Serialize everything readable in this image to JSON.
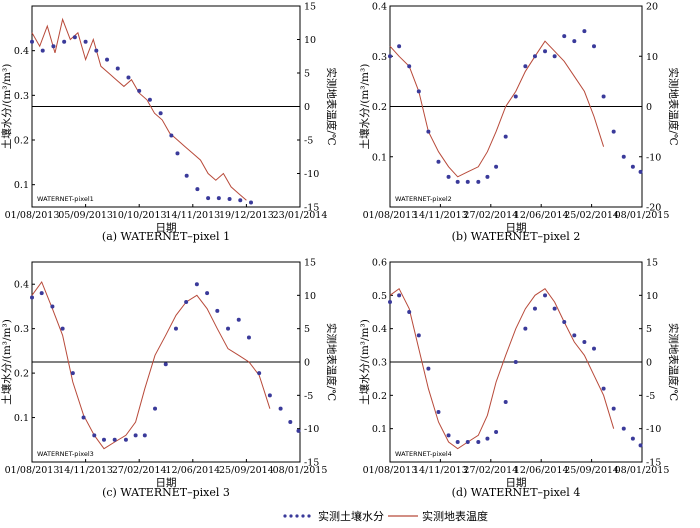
{
  "figure": {
    "legend": {
      "soil_moisture": "实测土壤水分",
      "surface_temperature": "实测地表温度"
    },
    "colors": {
      "moisture": "#3a3a9a",
      "temperature": "#b84a3a",
      "axis": "#000000",
      "zero_line": "#000000"
    }
  },
  "chart_data": [
    {
      "type": "scatter+line",
      "caption": "(a) WATERNET–pixel 1",
      "panel_label": "WATERNET-pixel1",
      "xlabel": "日期",
      "ylabel_left": "土壤水分/(m³/m³)",
      "ylabel_right": "实测地表温度/℃",
      "x_ticks": [
        "01/08/2013",
        "05/09/2013",
        "10/10/2013",
        "14/11/2013",
        "19/12/2013",
        "23/01/2014"
      ],
      "x_range": [
        "2013-08-01",
        "2014-01-23"
      ],
      "y_left_ticks": [
        "0.1",
        "0.2",
        "0.3",
        "0.4"
      ],
      "y_left_range": [
        0.05,
        0.5
      ],
      "y_right_ticks": [
        "-15",
        "-10",
        "-5",
        "0",
        "5",
        "10",
        "15"
      ],
      "y_right_range": [
        -15,
        15
      ],
      "soil_moisture": {
        "x": [
          "2013-08-01",
          "2013-08-08",
          "2013-08-15",
          "2013-08-22",
          "2013-08-29",
          "2013-09-05",
          "2013-09-12",
          "2013-09-19",
          "2013-09-26",
          "2013-10-03",
          "2013-10-10",
          "2013-10-17",
          "2013-10-24",
          "2013-10-31",
          "2013-11-04",
          "2013-11-10",
          "2013-11-17",
          "2013-11-24",
          "2013-12-01",
          "2013-12-08",
          "2013-12-15",
          "2013-12-22"
        ],
        "y": [
          0.42,
          0.4,
          0.41,
          0.42,
          0.43,
          0.42,
          0.4,
          0.38,
          0.36,
          0.34,
          0.31,
          0.29,
          0.26,
          0.21,
          0.17,
          0.12,
          0.09,
          0.07,
          0.07,
          0.068,
          0.065,
          0.06
        ]
      },
      "temperature": {
        "x": [
          "2013-08-01",
          "2013-08-06",
          "2013-08-11",
          "2013-08-16",
          "2013-08-21",
          "2013-08-26",
          "2013-08-31",
          "2013-09-05",
          "2013-09-10",
          "2013-09-15",
          "2013-09-20",
          "2013-09-25",
          "2013-09-30",
          "2013-10-05",
          "2013-10-10",
          "2013-10-15",
          "2013-10-20",
          "2013-10-25",
          "2013-10-30",
          "2013-11-04",
          "2013-11-09",
          "2013-11-14",
          "2013-11-19",
          "2013-11-24",
          "2013-11-29",
          "2013-12-04",
          "2013-12-09",
          "2013-12-14",
          "2013-12-19"
        ],
        "y": [
          11,
          9,
          12,
          8,
          13,
          10,
          11,
          7,
          10,
          6,
          5,
          4,
          3,
          4,
          2,
          1,
          -1,
          -2,
          -4,
          -5,
          -6,
          -7,
          -8,
          -10,
          -11,
          -10,
          -12,
          -13,
          -14
        ]
      }
    },
    {
      "type": "scatter+line",
      "caption": "(b) WATERNET–pixel 2",
      "panel_label": "WATERNET-pixel2",
      "xlabel": "日期",
      "ylabel_left": "土壤水分/(m³/m³)",
      "ylabel_right": "实测地表温度/℃",
      "x_ticks": [
        "01/08/2013",
        "14/11/2013",
        "27/02/2014",
        "12/06/2014",
        "25/02/2014",
        "08/01/2015"
      ],
      "x_range": [
        "2013-08-01",
        "2015-01-08"
      ],
      "y_left_ticks": [
        "0.1",
        "0.2",
        "0.3",
        "0.4"
      ],
      "y_left_range": [
        0.0,
        0.4
      ],
      "y_right_ticks": [
        "-20",
        "-10",
        "0",
        "10",
        "20"
      ],
      "y_right_range": [
        -20,
        20
      ],
      "soil_moisture": {
        "x": [
          "2013-08-01",
          "2013-08-20",
          "2013-09-10",
          "2013-09-30",
          "2013-10-20",
          "2013-11-10",
          "2013-12-01",
          "2013-12-20",
          "2014-01-10",
          "2014-02-01",
          "2014-02-20",
          "2014-03-10",
          "2014-03-30",
          "2014-04-20",
          "2014-05-10",
          "2014-05-30",
          "2014-06-20",
          "2014-07-10",
          "2014-07-30",
          "2014-08-20",
          "2014-09-10",
          "2014-09-30",
          "2014-10-20",
          "2014-11-10",
          "2014-12-01",
          "2014-12-20",
          "2015-01-05"
        ],
        "y": [
          0.3,
          0.32,
          0.28,
          0.23,
          0.15,
          0.09,
          0.06,
          0.05,
          0.05,
          0.05,
          0.06,
          0.08,
          0.14,
          0.22,
          0.28,
          0.3,
          0.31,
          0.3,
          0.34,
          0.33,
          0.35,
          0.32,
          0.22,
          0.15,
          0.1,
          0.08,
          0.07
        ]
      },
      "temperature": {
        "x": [
          "2013-08-01",
          "2013-08-20",
          "2013-09-10",
          "2013-09-30",
          "2013-10-20",
          "2013-11-10",
          "2013-12-01",
          "2013-12-20",
          "2014-01-10",
          "2014-02-01",
          "2014-02-20",
          "2014-03-10",
          "2014-03-30",
          "2014-04-20",
          "2014-05-10",
          "2014-05-30",
          "2014-06-20",
          "2014-07-10",
          "2014-07-30",
          "2014-08-20",
          "2014-09-10",
          "2014-09-30",
          "2014-10-20"
        ],
        "y": [
          12,
          10,
          8,
          3,
          -5,
          -9,
          -12,
          -14,
          -13,
          -12,
          -9,
          -5,
          0,
          3,
          7,
          10,
          13,
          11,
          9,
          6,
          3,
          -2,
          -8
        ]
      }
    },
    {
      "type": "scatter+line",
      "caption": "(c) WATERNET–pixel 3",
      "panel_label": "WATERNET-pixel3",
      "xlabel": "日期",
      "ylabel_left": "土壤水分/(m³/m³)",
      "ylabel_right": "实测地表温度/℃",
      "x_ticks": [
        "01/08/2013",
        "14/11/2013",
        "27/02/2014",
        "12/06/2014",
        "25/09/2014",
        "08/01/2015"
      ],
      "x_range": [
        "2013-08-01",
        "2015-01-08"
      ],
      "y_left_ticks": [
        "0.1",
        "0.2",
        "0.3",
        "0.4"
      ],
      "y_left_range": [
        0.0,
        0.45
      ],
      "y_right_ticks": [
        "-15",
        "-10",
        "-5",
        "0",
        "5",
        "10",
        "15"
      ],
      "y_right_range": [
        -15,
        15
      ],
      "soil_moisture": {
        "x": [
          "2013-08-01",
          "2013-08-20",
          "2013-09-10",
          "2013-09-30",
          "2013-10-20",
          "2013-11-10",
          "2013-12-01",
          "2013-12-20",
          "2014-01-10",
          "2014-02-01",
          "2014-02-20",
          "2014-03-10",
          "2014-03-30",
          "2014-04-20",
          "2014-05-10",
          "2014-05-30",
          "2014-06-20",
          "2014-07-10",
          "2014-07-30",
          "2014-08-20",
          "2014-09-10",
          "2014-09-30",
          "2014-10-20",
          "2014-11-10",
          "2014-12-01",
          "2014-12-20",
          "2015-01-05"
        ],
        "y": [
          0.37,
          0.38,
          0.35,
          0.3,
          0.2,
          0.1,
          0.06,
          0.05,
          0.05,
          0.05,
          0.06,
          0.06,
          0.12,
          0.22,
          0.3,
          0.36,
          0.4,
          0.38,
          0.34,
          0.3,
          0.32,
          0.28,
          0.2,
          0.15,
          0.12,
          0.09,
          0.07
        ]
      },
      "temperature": {
        "x": [
          "2013-08-01",
          "2013-08-20",
          "2013-09-10",
          "2013-09-30",
          "2013-10-20",
          "2013-11-10",
          "2013-12-01",
          "2013-12-20",
          "2014-01-10",
          "2014-02-01",
          "2014-02-20",
          "2014-03-10",
          "2014-03-30",
          "2014-04-20",
          "2014-05-10",
          "2014-05-30",
          "2014-06-20",
          "2014-07-10",
          "2014-07-30",
          "2014-08-20",
          "2014-09-10",
          "2014-09-30",
          "2014-10-20",
          "2014-11-10"
        ],
        "y": [
          10,
          12,
          8,
          4,
          -3,
          -8,
          -11,
          -13,
          -12,
          -11,
          -9,
          -4,
          1,
          4,
          7,
          9,
          10,
          8,
          5,
          2,
          1,
          0,
          -2,
          -7
        ]
      }
    },
    {
      "type": "scatter+line",
      "caption": "(d) WATERNET–pixel 4",
      "panel_label": "WATERNET-pixel4",
      "xlabel": "日期",
      "ylabel_left": "土壤水分/(m³/m³)",
      "ylabel_right": "实测地表温度/℃",
      "x_ticks": [
        "01/08/2013",
        "14/11/2013",
        "27/02/2014",
        "12/06/2014",
        "25/09/2014",
        "08/01/2015"
      ],
      "x_range": [
        "2013-08-01",
        "2015-01-08"
      ],
      "y_left_ticks": [
        "0.1",
        "0.2",
        "0.3",
        "0.4",
        "0.5",
        "0.6"
      ],
      "y_left_range": [
        0.0,
        0.6
      ],
      "y_right_ticks": [
        "-15",
        "-10",
        "-5",
        "0",
        "5",
        "10",
        "15"
      ],
      "y_right_range": [
        -15,
        15
      ],
      "soil_moisture": {
        "x": [
          "2013-08-01",
          "2013-08-20",
          "2013-09-10",
          "2013-09-30",
          "2013-10-20",
          "2013-11-10",
          "2013-12-01",
          "2013-12-20",
          "2014-01-10",
          "2014-02-01",
          "2014-02-20",
          "2014-03-10",
          "2014-03-30",
          "2014-04-20",
          "2014-05-10",
          "2014-05-30",
          "2014-06-20",
          "2014-07-10",
          "2014-07-30",
          "2014-08-20",
          "2014-09-10",
          "2014-09-30",
          "2014-10-20",
          "2014-11-10",
          "2014-12-01",
          "2014-12-20",
          "2015-01-05"
        ],
        "y": [
          0.48,
          0.5,
          0.45,
          0.38,
          0.28,
          0.15,
          0.08,
          0.06,
          0.06,
          0.06,
          0.07,
          0.09,
          0.18,
          0.3,
          0.4,
          0.46,
          0.5,
          0.46,
          0.42,
          0.38,
          0.36,
          0.34,
          0.22,
          0.16,
          0.1,
          0.07,
          0.05
        ]
      },
      "temperature": {
        "x": [
          "2013-08-01",
          "2013-08-20",
          "2013-09-10",
          "2013-09-30",
          "2013-10-20",
          "2013-11-10",
          "2013-12-01",
          "2013-12-20",
          "2014-01-10",
          "2014-02-01",
          "2014-02-20",
          "2014-03-10",
          "2014-03-30",
          "2014-04-20",
          "2014-05-10",
          "2014-05-30",
          "2014-06-20",
          "2014-07-10",
          "2014-07-30",
          "2014-08-20",
          "2014-09-10",
          "2014-09-30",
          "2014-10-20",
          "2014-11-10"
        ],
        "y": [
          10,
          11,
          8,
          2,
          -4,
          -9,
          -12,
          -13,
          -12,
          -11,
          -8,
          -3,
          1,
          5,
          8,
          10,
          11,
          9,
          6,
          3,
          1,
          -2,
          -5,
          -10
        ]
      }
    }
  ]
}
